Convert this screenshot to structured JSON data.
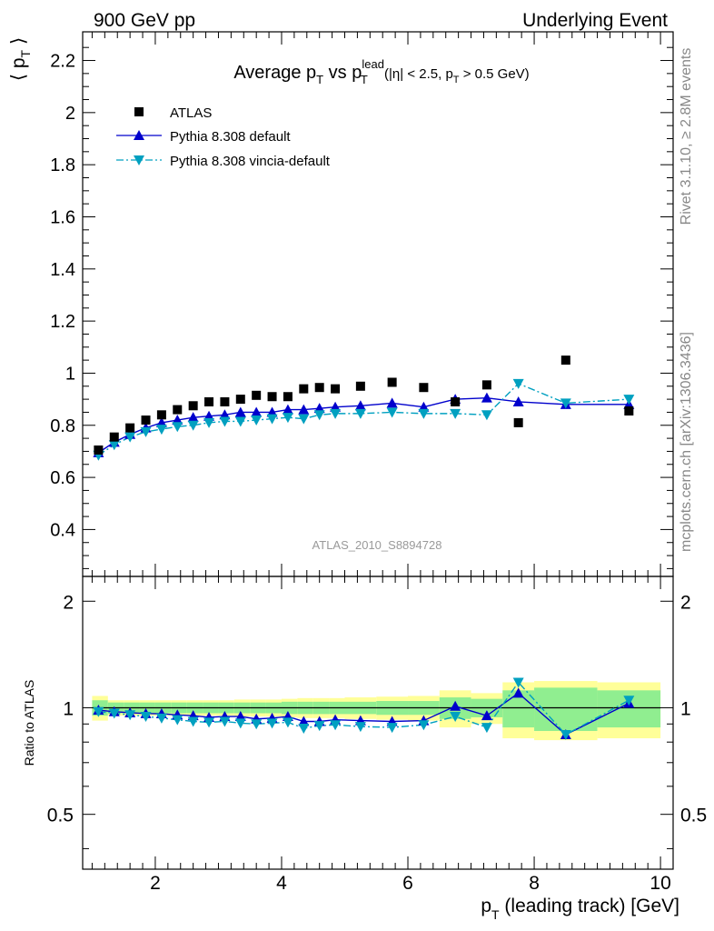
{
  "header": {
    "left": "900 GeV pp",
    "right": "Underlying Event"
  },
  "side_texts": {
    "rivet": "Rivet 3.1.10, ≥ 2.8M events",
    "mcplots": "mcplots.cern.ch [arXiv:1306.3436]"
  },
  "colors": {
    "atlas": "#000000",
    "pythia_default": "#0000cc",
    "pythia_vincia": "#00a0c0",
    "band_inner": "#90ee90",
    "band_outer": "#ffff99"
  },
  "chart_data": [
    {
      "type": "scatter",
      "title": "Average p_T vs p_T^lead (|η| < 2.5, p_T > 0.5 GeV)",
      "title_parts": {
        "main": "Average p",
        "vs": " vs p",
        "sub_t": "T",
        "sup_lead": "lead",
        "cuts_a": " (|η| < 2.5, p",
        "cuts_b": " > 0.5 GeV)"
      },
      "ylabel": "⟨ p_T ⟩",
      "ylabel_parts": {
        "open": "⟨ p",
        "sub": "T",
        "close": " ⟩"
      },
      "watermark": "ATLAS_2010_S8894728",
      "xlim": [
        0.85,
        10.2
      ],
      "ylim": [
        0.22,
        2.31
      ],
      "ytick_labels": [
        "0.4",
        "0.6",
        "0.8",
        "1",
        "1.2",
        "1.4",
        "1.6",
        "1.8",
        "2",
        "2.2"
      ],
      "ytick_values": [
        0.4,
        0.6,
        0.8,
        1.0,
        1.2,
        1.4,
        1.6,
        1.8,
        2.0,
        2.2
      ],
      "legend_position": "top-left",
      "series": [
        {
          "name": "ATLAS",
          "style": "square-marker",
          "x": [
            1.1,
            1.35,
            1.6,
            1.85,
            2.1,
            2.35,
            2.6,
            2.85,
            3.1,
            3.35,
            3.6,
            3.85,
            4.1,
            4.35,
            4.6,
            4.85,
            5.25,
            5.75,
            6.25,
            6.75,
            7.25,
            7.75,
            8.5,
            9.5
          ],
          "y": [
            0.705,
            0.755,
            0.79,
            0.82,
            0.84,
            0.86,
            0.875,
            0.89,
            0.89,
            0.9,
            0.915,
            0.91,
            0.91,
            0.94,
            0.945,
            0.94,
            0.95,
            0.965,
            0.945,
            0.89,
            0.955,
            0.81,
            1.05,
            0.855
          ]
        },
        {
          "name": "Pythia 8.308 default",
          "style": "solid-line-up-triangle",
          "x": [
            1.1,
            1.35,
            1.6,
            1.85,
            2.1,
            2.35,
            2.6,
            2.85,
            3.1,
            3.35,
            3.6,
            3.85,
            4.1,
            4.35,
            4.6,
            4.85,
            5.25,
            5.75,
            6.25,
            6.75,
            7.25,
            7.75,
            8.5,
            9.5
          ],
          "y": [
            0.695,
            0.735,
            0.765,
            0.79,
            0.81,
            0.82,
            0.83,
            0.835,
            0.84,
            0.85,
            0.85,
            0.85,
            0.86,
            0.86,
            0.865,
            0.87,
            0.875,
            0.885,
            0.87,
            0.9,
            0.905,
            0.89,
            0.88,
            0.88
          ]
        },
        {
          "name": "Pythia 8.308 vincia-default",
          "style": "dashdot-line-down-triangle",
          "x": [
            1.1,
            1.35,
            1.6,
            1.85,
            2.1,
            2.35,
            2.6,
            2.85,
            3.1,
            3.35,
            3.6,
            3.85,
            4.1,
            4.35,
            4.6,
            4.85,
            5.25,
            5.75,
            6.25,
            6.75,
            7.25,
            7.75,
            8.5,
            9.5
          ],
          "y": [
            0.685,
            0.725,
            0.755,
            0.775,
            0.785,
            0.795,
            0.8,
            0.81,
            0.815,
            0.815,
            0.82,
            0.825,
            0.83,
            0.825,
            0.84,
            0.845,
            0.845,
            0.85,
            0.845,
            0.845,
            0.84,
            0.96,
            0.885,
            0.9
          ]
        }
      ]
    },
    {
      "type": "scatter",
      "ylabel": "Ratio to ATLAS",
      "xlabel": "p_T (leading track) [GeV]",
      "xlabel_parts": {
        "p": "p",
        "sub": "T",
        "rest": " (leading track) [GeV]"
      },
      "xlim": [
        0.85,
        10.2
      ],
      "ylim": [
        0.35,
        2.35
      ],
      "y_scale": "log",
      "xtick_labels": [
        "2",
        "4",
        "6",
        "8",
        "10"
      ],
      "xtick_values": [
        2,
        4,
        6,
        8,
        10
      ],
      "ytick_labels": [
        "0.5",
        "1",
        "2"
      ],
      "ytick_values": [
        0.5,
        1,
        2
      ],
      "reference_band": {
        "x_edges": [
          1.0,
          1.25,
          1.5,
          1.75,
          2.0,
          2.25,
          2.5,
          2.75,
          3.0,
          3.25,
          3.5,
          3.75,
          4.0,
          4.25,
          4.5,
          4.75,
          5.0,
          5.5,
          6.0,
          6.5,
          7.0,
          7.5,
          8.0,
          9.0,
          10.0
        ],
        "inner_rel": [
          0.05,
          0.035,
          0.035,
          0.035,
          0.035,
          0.035,
          0.035,
          0.035,
          0.035,
          0.035,
          0.035,
          0.035,
          0.04,
          0.04,
          0.04,
          0.04,
          0.04,
          0.045,
          0.045,
          0.07,
          0.06,
          0.12,
          0.14,
          0.12
        ],
        "outer_rel": [
          0.08,
          0.05,
          0.05,
          0.05,
          0.05,
          0.05,
          0.05,
          0.05,
          0.05,
          0.055,
          0.055,
          0.055,
          0.06,
          0.065,
          0.065,
          0.065,
          0.07,
          0.075,
          0.08,
          0.12,
          0.1,
          0.18,
          0.19,
          0.18
        ]
      },
      "series": [
        {
          "name": "Pythia 8.308 default",
          "x": [
            1.1,
            1.35,
            1.6,
            1.85,
            2.1,
            2.35,
            2.6,
            2.85,
            3.1,
            3.35,
            3.6,
            3.85,
            4.1,
            4.35,
            4.6,
            4.85,
            5.25,
            5.75,
            6.25,
            6.75,
            7.25,
            7.75,
            8.5,
            9.5
          ],
          "y": [
            0.985,
            0.975,
            0.968,
            0.963,
            0.962,
            0.955,
            0.95,
            0.94,
            0.945,
            0.945,
            0.93,
            0.935,
            0.945,
            0.915,
            0.915,
            0.925,
            0.92,
            0.915,
            0.92,
            1.01,
            0.95,
            1.1,
            0.84,
            1.03
          ]
        },
        {
          "name": "Pythia 8.308 vincia-default",
          "x": [
            1.1,
            1.35,
            1.6,
            1.85,
            2.1,
            2.35,
            2.6,
            2.85,
            3.1,
            3.35,
            3.6,
            3.85,
            4.1,
            4.35,
            4.6,
            4.85,
            5.25,
            5.75,
            6.25,
            6.75,
            7.25,
            7.75,
            8.5,
            9.5
          ],
          "y": [
            0.975,
            0.965,
            0.955,
            0.945,
            0.935,
            0.925,
            0.915,
            0.91,
            0.915,
            0.905,
            0.9,
            0.905,
            0.91,
            0.875,
            0.89,
            0.895,
            0.885,
            0.88,
            0.895,
            0.945,
            0.88,
            1.18,
            0.84,
            1.05
          ]
        }
      ]
    }
  ]
}
